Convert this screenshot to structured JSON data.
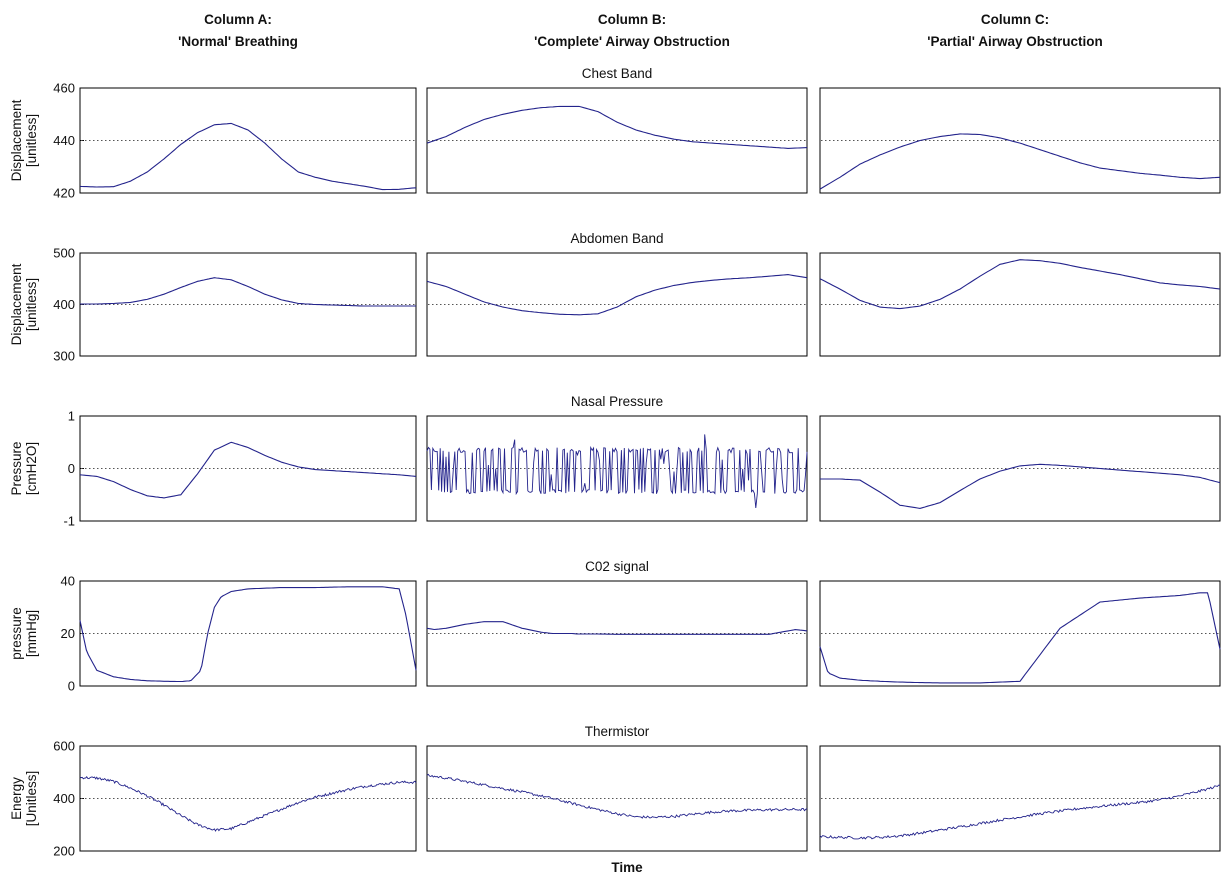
{
  "columns": [
    {
      "title_line1": "Column A:",
      "title_line2": "'Normal' Breathing"
    },
    {
      "title_line1": "Column B:",
      "title_line2": "'Complete' Airway Obstruction"
    },
    {
      "title_line1": "Column C:",
      "title_line2": "'Partial' Airway Obstruction"
    }
  ],
  "xlabel": "Time",
  "colors": {
    "trace": "#24248c",
    "frame": "#000000",
    "reference_line": "#555555"
  },
  "chart_data": [
    {
      "type": "line",
      "title": "Chest Band",
      "ylabel_line1": "Displacement",
      "ylabel_line2": "[unitless]",
      "ylim": [
        420,
        460
      ],
      "yticks": [
        "460",
        "440",
        "420"
      ],
      "reference_line": 440,
      "grid": false,
      "x": [
        0,
        0.05,
        0.1,
        0.15,
        0.2,
        0.25,
        0.3,
        0.35,
        0.4,
        0.45,
        0.5,
        0.55,
        0.6,
        0.65,
        0.7,
        0.75,
        0.8,
        0.85,
        0.9,
        0.95,
        1.0
      ],
      "series": [
        {
          "column": "A",
          "noisy": false,
          "values": [
            422.5,
            422.3,
            422.4,
            424.5,
            428,
            433,
            438.5,
            443,
            446,
            446.5,
            444,
            439,
            433,
            428,
            426,
            424.5,
            423.5,
            422.5,
            421.3,
            421.4,
            422
          ]
        },
        {
          "column": "B",
          "noisy": false,
          "values": [
            439,
            441.5,
            445,
            448,
            450,
            451.5,
            452.5,
            453,
            453,
            451,
            447,
            444,
            442,
            440.5,
            439.5,
            439,
            438.5,
            438,
            437.5,
            437,
            437.3
          ]
        },
        {
          "column": "C",
          "noisy": false,
          "values": [
            421.5,
            426,
            431,
            434.5,
            437.5,
            440,
            441.5,
            442.5,
            442.3,
            441,
            439,
            436.5,
            434,
            431.5,
            429.5,
            428.5,
            427.5,
            426.8,
            426,
            425.5,
            426
          ]
        }
      ]
    },
    {
      "type": "line",
      "title": "Abdomen Band",
      "ylabel_line1": "Displacement",
      "ylabel_line2": "[unitless]",
      "ylim": [
        300,
        500
      ],
      "yticks": [
        "500",
        "400",
        "300"
      ],
      "reference_line": 400,
      "grid": false,
      "x": [
        0,
        0.05,
        0.1,
        0.15,
        0.2,
        0.25,
        0.3,
        0.35,
        0.4,
        0.45,
        0.5,
        0.55,
        0.6,
        0.65,
        0.7,
        0.75,
        0.8,
        0.85,
        0.9,
        0.95,
        1.0
      ],
      "series": [
        {
          "column": "A",
          "noisy": false,
          "values": [
            401,
            401,
            402,
            404,
            410,
            420,
            433,
            445,
            452,
            448,
            435,
            420,
            409,
            402,
            400,
            399,
            398,
            397,
            397,
            397,
            397
          ]
        },
        {
          "column": "B",
          "noisy": false,
          "values": [
            445,
            435,
            420,
            405,
            395,
            388,
            384,
            381,
            380,
            382,
            395,
            415,
            428,
            437,
            443,
            447,
            450,
            452,
            455,
            458,
            452
          ]
        },
        {
          "column": "C",
          "noisy": false,
          "values": [
            450,
            430,
            408,
            395,
            392,
            397,
            410,
            430,
            455,
            478,
            487,
            485,
            480,
            472,
            465,
            458,
            450,
            442,
            438,
            435,
            430
          ]
        }
      ]
    },
    {
      "type": "line",
      "title": "Nasal Pressure",
      "ylabel_line1": "Pressure",
      "ylabel_line2": "[cmH2O]",
      "ylim": [
        -1,
        1
      ],
      "yticks": [
        "1",
        "0",
        "-1"
      ],
      "reference_line": 0,
      "grid": false,
      "x": [
        0,
        0.05,
        0.1,
        0.15,
        0.2,
        0.25,
        0.3,
        0.35,
        0.4,
        0.45,
        0.5,
        0.55,
        0.6,
        0.65,
        0.7,
        0.75,
        0.8,
        0.85,
        0.9,
        0.95,
        1.0
      ],
      "series": [
        {
          "column": "A",
          "noisy": false,
          "values": [
            -0.12,
            -0.15,
            -0.25,
            -0.4,
            -0.52,
            -0.56,
            -0.5,
            -0.1,
            0.35,
            0.5,
            0.4,
            0.25,
            0.12,
            0.03,
            -0.02,
            -0.04,
            -0.06,
            -0.08,
            -0.1,
            -0.12,
            -0.15
          ]
        },
        {
          "column": "B",
          "noisy": true,
          "noise_range": [
            -0.75,
            0.65
          ],
          "note": "rapid oscillation between about -0.5 and +0.4",
          "values": [
            0,
            0,
            0,
            0,
            0,
            0,
            0,
            0,
            0,
            0,
            0,
            0,
            0,
            0,
            0,
            0,
            0,
            0,
            0,
            0,
            0
          ]
        },
        {
          "column": "C",
          "noisy": false,
          "values": [
            -0.2,
            -0.2,
            -0.22,
            -0.45,
            -0.7,
            -0.76,
            -0.65,
            -0.42,
            -0.2,
            -0.05,
            0.05,
            0.08,
            0.06,
            0.03,
            0.0,
            -0.03,
            -0.06,
            -0.09,
            -0.12,
            -0.17,
            -0.27
          ]
        }
      ]
    },
    {
      "type": "line",
      "title": "C02 signal",
      "ylabel_line1": "pressure",
      "ylabel_line2": "[mmHg]",
      "ylim": [
        0,
        40
      ],
      "yticks": [
        "40",
        "20",
        "0"
      ],
      "reference_line": 20,
      "grid": false,
      "x": [
        0,
        0.02,
        0.05,
        0.1,
        0.15,
        0.2,
        0.25,
        0.3,
        0.33,
        0.36,
        0.38,
        0.4,
        0.42,
        0.45,
        0.5,
        0.6,
        0.7,
        0.8,
        0.9,
        0.95,
        0.97,
        1.0
      ],
      "series": [
        {
          "column": "A",
          "noisy": false,
          "values": [
            25,
            13,
            6,
            3.5,
            2.5,
            2,
            1.8,
            1.7,
            2,
            6,
            20,
            30,
            34,
            36,
            37,
            37.5,
            37.5,
            37.8,
            37.8,
            37,
            27,
            6
          ]
        },
        {
          "column": "B",
          "noisy": false,
          "values": [
            22,
            21.5,
            22,
            23.5,
            24.5,
            24.5,
            22,
            20.5,
            20,
            20,
            20,
            19.8,
            19.8,
            19.8,
            19.7,
            19.7,
            19.7,
            19.7,
            19.7,
            21,
            21.5,
            21
          ]
        },
        {
          "column": "C",
          "noisy": false,
          "values": [
            15,
            5,
            3,
            2.2,
            1.8,
            1.5,
            1.3,
            1.2,
            1.2,
            1.2,
            1.2,
            1.2,
            1.3,
            1.5,
            1.8,
            22,
            32,
            33.5,
            34.5,
            35.5,
            35.5,
            14
          ]
        }
      ]
    },
    {
      "type": "line",
      "title": "Thermistor",
      "ylabel_line1": "Energy",
      "ylabel_line2": "[Unitless]",
      "ylim": [
        200,
        600
      ],
      "yticks": [
        "600",
        "400",
        "200"
      ],
      "reference_line": 400,
      "grid": false,
      "x": [
        0,
        0.05,
        0.1,
        0.15,
        0.2,
        0.25,
        0.3,
        0.35,
        0.4,
        0.45,
        0.5,
        0.55,
        0.6,
        0.65,
        0.7,
        0.75,
        0.8,
        0.85,
        0.9,
        0.95,
        1.0
      ],
      "series": [
        {
          "column": "A",
          "noisy": true,
          "values": [
            480,
            478,
            465,
            440,
            410,
            375,
            335,
            300,
            280,
            285,
            310,
            335,
            360,
            385,
            405,
            420,
            435,
            447,
            455,
            462,
            462
          ]
        },
        {
          "column": "B",
          "noisy": true,
          "values": [
            488,
            478,
            465,
            452,
            438,
            425,
            410,
            393,
            375,
            358,
            342,
            330,
            328,
            332,
            340,
            348,
            353,
            355,
            357,
            358,
            358
          ]
        },
        {
          "column": "C",
          "noisy": true,
          "values": [
            255,
            252,
            250,
            252,
            258,
            268,
            280,
            292,
            305,
            318,
            330,
            342,
            352,
            362,
            370,
            378,
            385,
            395,
            410,
            428,
            450
          ]
        }
      ]
    }
  ]
}
